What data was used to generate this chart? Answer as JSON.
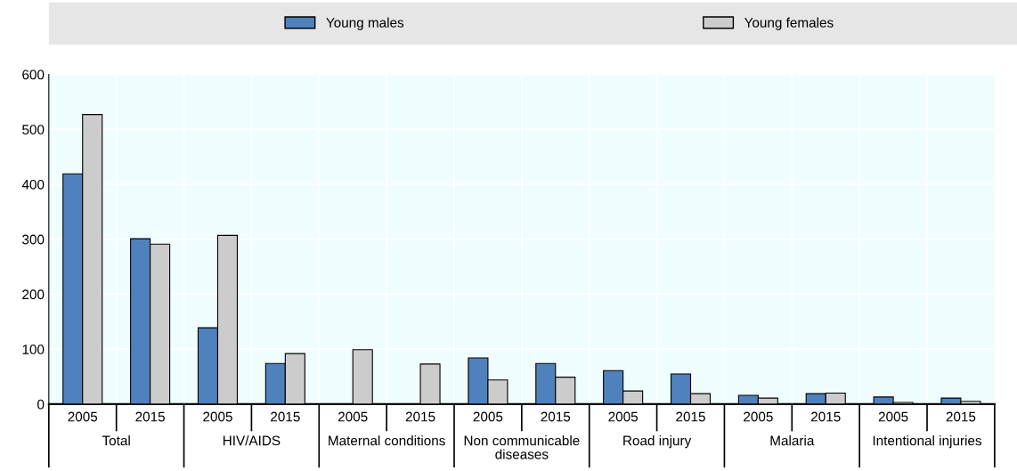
{
  "chart_data": {
    "type": "bar",
    "categories": [
      "2005",
      "2015",
      "2005",
      "2015",
      "2005",
      "2015",
      "2005",
      "2015",
      "2005",
      "2015",
      "2005",
      "2015",
      "2005",
      "2015"
    ],
    "series": [
      {
        "name": "Young males",
        "color": "#4f81bd",
        "values": [
          419,
          301,
          139,
          74,
          null,
          null,
          84,
          74,
          61,
          55,
          16,
          19,
          13,
          11
        ]
      },
      {
        "name": "Young females",
        "color": "#cccccc",
        "values": [
          527,
          291,
          307,
          92,
          99,
          73,
          44,
          49,
          24,
          19,
          11,
          20,
          3,
          5
        ]
      }
    ],
    "annotations": [
      "Total",
      "HIV/AIDS",
      "Maternal conditions",
      "Non communicable\ndiseases",
      "Road injury",
      "Malaria",
      "Intentional injuries"
    ],
    "ylim": [
      0,
      600
    ],
    "yticks": [
      0,
      100,
      200,
      300,
      400,
      500,
      600
    ],
    "grid": "y",
    "legend": "top"
  }
}
